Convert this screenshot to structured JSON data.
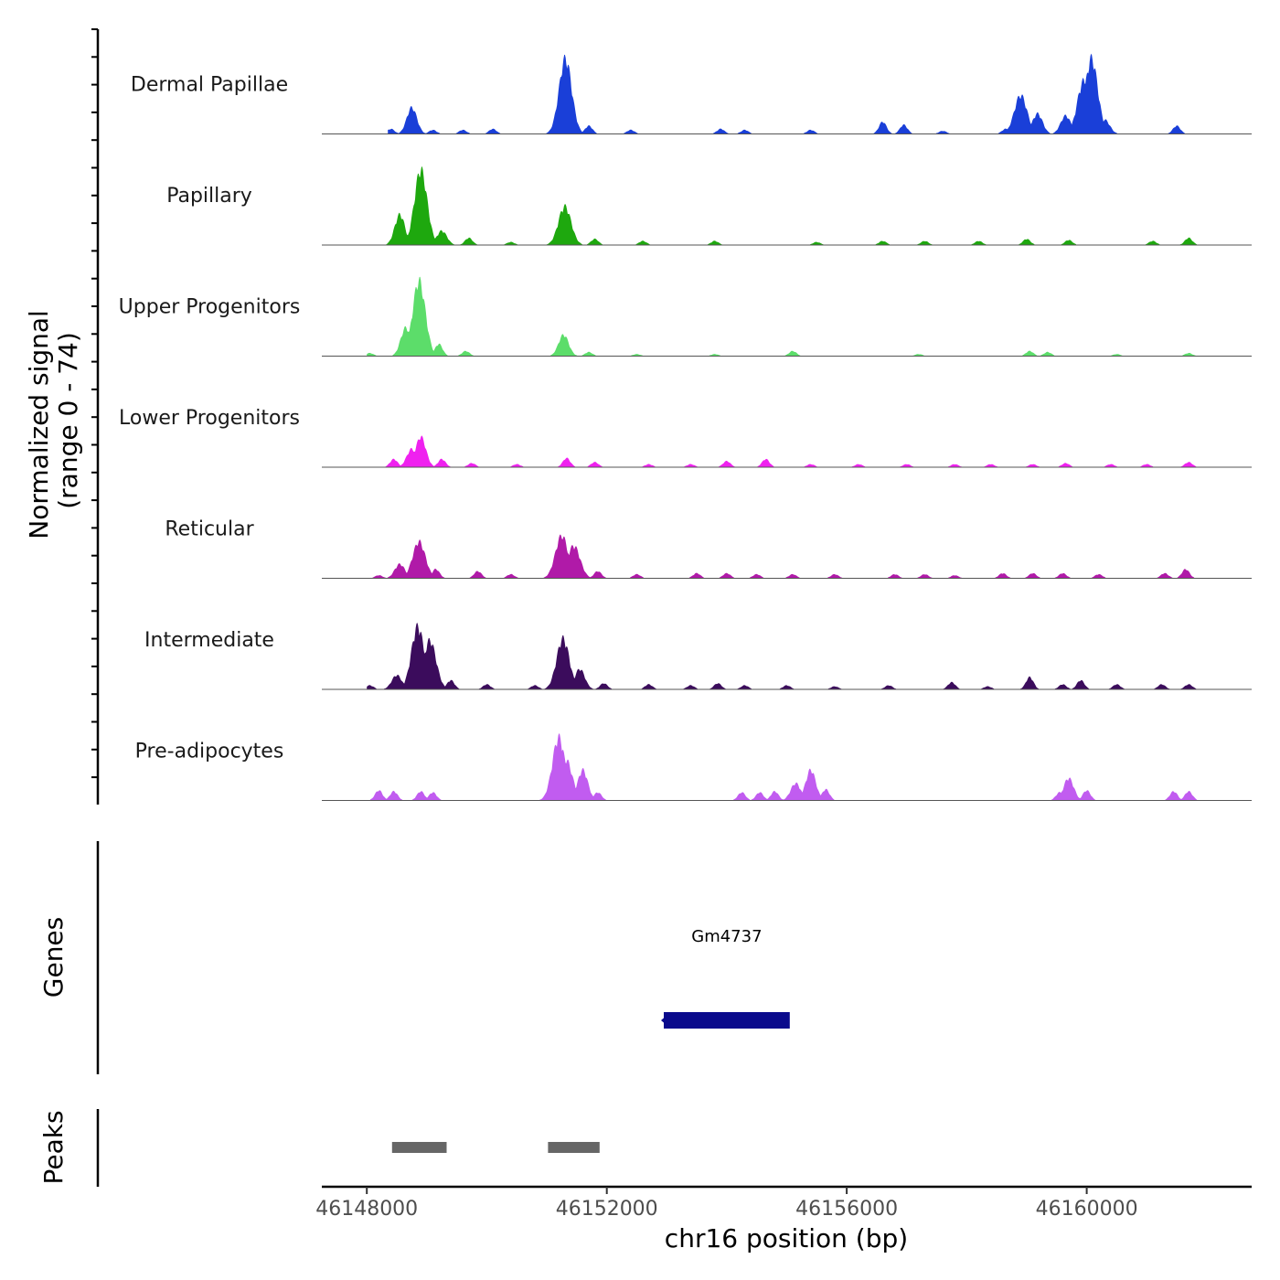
{
  "chart_data": {
    "type": "area",
    "title": "",
    "chromosome": "chr16",
    "xlabel": "chr16 position (bp)",
    "ylabel_line1": "Normalized signal",
    "ylabel_line2": "(range 0 - 74)",
    "xlim": [
      46147250,
      46162750
    ],
    "ylim": [
      0,
      74
    ],
    "xticks": [
      46148000,
      46152000,
      46156000,
      46160000
    ],
    "xtick_labels": [
      "46148000",
      "46152000",
      "46156000",
      "46160000"
    ],
    "tracks": [
      {
        "name": "Dermal Papillae",
        "color": "#1a3fd8",
        "peaks": [
          [
            46148400,
            5
          ],
          [
            46148750,
            26
          ],
          [
            46149100,
            4
          ],
          [
            46149600,
            4
          ],
          [
            46150100,
            5
          ],
          [
            46151310,
            74
          ],
          [
            46151700,
            8
          ],
          [
            46152400,
            4
          ],
          [
            46153900,
            5
          ],
          [
            46154300,
            4
          ],
          [
            46155400,
            4
          ],
          [
            46156600,
            12
          ],
          [
            46156950,
            9
          ],
          [
            46157600,
            3
          ],
          [
            46158650,
            5
          ],
          [
            46158900,
            38
          ],
          [
            46159180,
            20
          ],
          [
            46159650,
            18
          ],
          [
            46159950,
            52
          ],
          [
            46160080,
            74
          ],
          [
            46160300,
            14
          ],
          [
            46161500,
            8
          ]
        ],
        "baseline": [
          46148350,
          46161950
        ]
      },
      {
        "name": "Papillary",
        "color": "#1ea80e",
        "peaks": [
          [
            46148550,
            30
          ],
          [
            46148900,
            74
          ],
          [
            46149250,
            14
          ],
          [
            46149700,
            7
          ],
          [
            46150400,
            3
          ],
          [
            46151300,
            38
          ],
          [
            46151800,
            6
          ],
          [
            46152600,
            4
          ],
          [
            46153800,
            4
          ],
          [
            46155500,
            3
          ],
          [
            46156600,
            4
          ],
          [
            46157300,
            4
          ],
          [
            46158200,
            4
          ],
          [
            46159000,
            6
          ],
          [
            46159700,
            5
          ],
          [
            46161100,
            4
          ],
          [
            46161700,
            7
          ]
        ],
        "baseline": [
          46148000,
          46162000
        ]
      },
      {
        "name": "Upper Progenitors",
        "color": "#5cdd6a",
        "peaks": [
          [
            46148050,
            3
          ],
          [
            46148650,
            28
          ],
          [
            46148870,
            74
          ],
          [
            46149200,
            12
          ],
          [
            46149650,
            5
          ],
          [
            46151280,
            21
          ],
          [
            46151700,
            4
          ],
          [
            46152500,
            2
          ],
          [
            46153800,
            2
          ],
          [
            46155100,
            5
          ],
          [
            46157200,
            2
          ],
          [
            46159050,
            5
          ],
          [
            46159350,
            4
          ],
          [
            46160500,
            2
          ],
          [
            46161700,
            3
          ]
        ],
        "baseline": [
          46148000,
          46162000
        ]
      },
      {
        "name": "Lower Progenitors",
        "color": "#ef21ef",
        "peaks": [
          [
            46148450,
            8
          ],
          [
            46148750,
            18
          ],
          [
            46148900,
            30
          ],
          [
            46149250,
            8
          ],
          [
            46149750,
            4
          ],
          [
            46150500,
            3
          ],
          [
            46151330,
            9
          ],
          [
            46151800,
            5
          ],
          [
            46152700,
            3
          ],
          [
            46153400,
            3
          ],
          [
            46154000,
            6
          ],
          [
            46154650,
            8
          ],
          [
            46155400,
            3
          ],
          [
            46156200,
            3
          ],
          [
            46157000,
            3
          ],
          [
            46157800,
            3
          ],
          [
            46158400,
            3
          ],
          [
            46159100,
            3
          ],
          [
            46159650,
            4
          ],
          [
            46160400,
            3
          ],
          [
            46161000,
            3
          ],
          [
            46161700,
            5
          ]
        ],
        "baseline": [
          46148000,
          46162000
        ]
      },
      {
        "name": "Reticular",
        "color": "#b01aa8",
        "peaks": [
          [
            46148200,
            3
          ],
          [
            46148550,
            14
          ],
          [
            46148870,
            36
          ],
          [
            46149150,
            9
          ],
          [
            46149850,
            7
          ],
          [
            46150400,
            4
          ],
          [
            46151250,
            42
          ],
          [
            46151450,
            32
          ],
          [
            46151850,
            7
          ],
          [
            46152500,
            4
          ],
          [
            46153500,
            5
          ],
          [
            46154000,
            5
          ],
          [
            46154500,
            4
          ],
          [
            46155100,
            4
          ],
          [
            46155800,
            4
          ],
          [
            46156800,
            4
          ],
          [
            46157300,
            4
          ],
          [
            46157800,
            3
          ],
          [
            46158600,
            5
          ],
          [
            46159100,
            5
          ],
          [
            46159600,
            5
          ],
          [
            46160200,
            4
          ],
          [
            46161300,
            5
          ],
          [
            46161650,
            9
          ]
        ],
        "baseline": [
          46148000,
          46162000
        ]
      },
      {
        "name": "Intermediate",
        "color": "#3b0c5c",
        "peaks": [
          [
            46148050,
            4
          ],
          [
            46148500,
            14
          ],
          [
            46148850,
            62
          ],
          [
            46149050,
            48
          ],
          [
            46149400,
            9
          ],
          [
            46150000,
            5
          ],
          [
            46150800,
            4
          ],
          [
            46151270,
            50
          ],
          [
            46151550,
            20
          ],
          [
            46151950,
            6
          ],
          [
            46152700,
            5
          ],
          [
            46153400,
            4
          ],
          [
            46153850,
            6
          ],
          [
            46154300,
            4
          ],
          [
            46155000,
            4
          ],
          [
            46155800,
            3
          ],
          [
            46156700,
            4
          ],
          [
            46157750,
            7
          ],
          [
            46158350,
            3
          ],
          [
            46159050,
            12
          ],
          [
            46159600,
            5
          ],
          [
            46159900,
            9
          ],
          [
            46160500,
            5
          ],
          [
            46161250,
            5
          ],
          [
            46161700,
            5
          ]
        ],
        "baseline": [
          46148000,
          46162000
        ]
      },
      {
        "name": "Pre-adipocytes",
        "color": "#c15cf0",
        "peaks": [
          [
            46148200,
            10
          ],
          [
            46148450,
            9
          ],
          [
            46148900,
            9
          ],
          [
            46149100,
            8
          ],
          [
            46151200,
            62
          ],
          [
            46151320,
            40
          ],
          [
            46151600,
            30
          ],
          [
            46151850,
            8
          ],
          [
            46154250,
            8
          ],
          [
            46154550,
            8
          ],
          [
            46154800,
            9
          ],
          [
            46155150,
            17
          ],
          [
            46155400,
            30
          ],
          [
            46155650,
            11
          ],
          [
            46159550,
            8
          ],
          [
            46159700,
            22
          ],
          [
            46160000,
            10
          ],
          [
            46161450,
            9
          ],
          [
            46161700,
            9
          ]
        ],
        "baseline": [
          46148000,
          46162000
        ]
      }
    ],
    "genes": [
      {
        "name": "Gm4737",
        "start": 46152950,
        "end": 46155050,
        "strand": "-",
        "color": "#0a0a8c"
      }
    ],
    "peak_regions": {
      "label": "Peaks",
      "color": "#666666",
      "regions": [
        [
          46148420,
          46149330
        ],
        [
          46151020,
          46151880
        ]
      ]
    },
    "panel_labels": {
      "genes": "Genes",
      "peaks": "Peaks"
    }
  }
}
